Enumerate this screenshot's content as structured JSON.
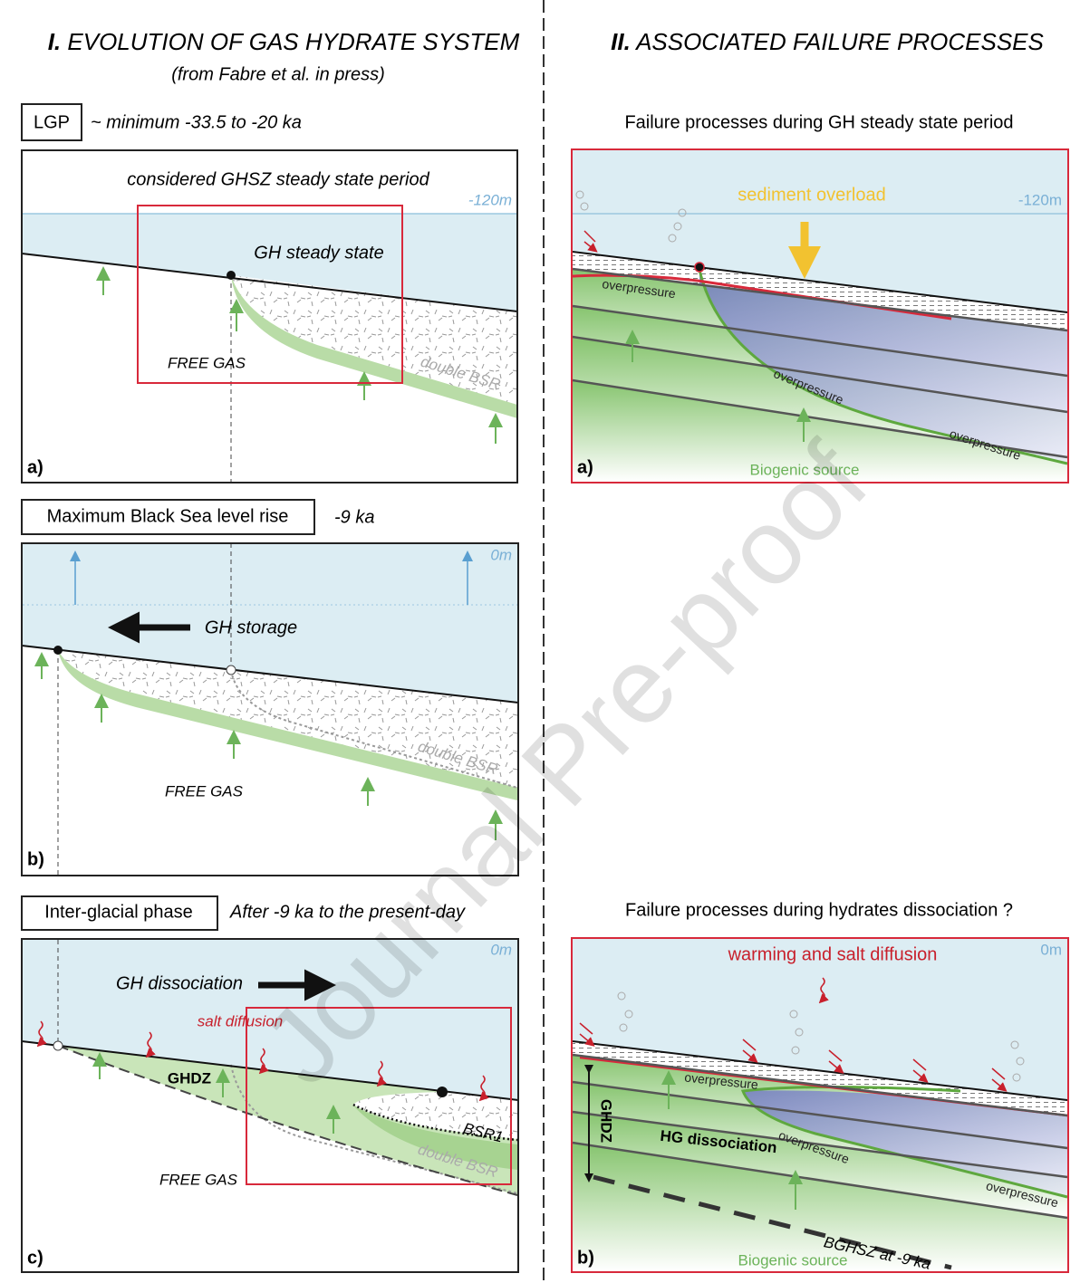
{
  "left": {
    "number": "I.",
    "title": "EVOLUTION OF GAS HYDRATE SYSTEM",
    "subtitle": "(from Fabre et al. in press)",
    "panels": [
      {
        "tag": "LGP",
        "period": "~ minimum -33.5 to -20 ka",
        "caption": "considered GHSZ steady state period",
        "level": "-120m",
        "state": "GH steady state",
        "gas": "FREE GAS",
        "bsr": "double BSR",
        "letter": "a)"
      },
      {
        "tag": "Maximum Black Sea level rise",
        "period": "-9 ka",
        "level": "0m",
        "state": "GH storage",
        "gas": "FREE GAS",
        "bsr": "double BSR",
        "letter": "b)"
      },
      {
        "tag": "Inter-glacial phase",
        "period": "After -9 ka to the present-day",
        "level": "0m",
        "state": "GH dissociation",
        "salt": "salt diffusion",
        "zone": "GHDZ",
        "bsr1": "BSR1",
        "bsr": "double BSR",
        "gas": "FREE GAS",
        "letter": "c)"
      }
    ]
  },
  "right": {
    "number": "II.",
    "title": "ASSOCIATED FAILURE PROCESSES",
    "panels": [
      {
        "heading": "Failure processes during GH steady state period",
        "driver": "sediment overload",
        "level": "-120m",
        "overpressure": [
          "overpressure",
          "overpressure",
          "overpressure"
        ],
        "source": "Biogenic source",
        "letter": "a)"
      },
      {
        "heading": "Failure processes during hydrates dissociation ?",
        "driver": "warming and salt diffusion",
        "level": "0m",
        "zone": "GHDZ",
        "process": "HG dissociation",
        "overpressure": [
          "overpressure",
          "overpressure",
          "overpressure"
        ],
        "boundary": "BGHSZ at -9 ka",
        "source": "Biogenic source",
        "letter": "b)"
      }
    ]
  },
  "watermark": "Journal Pre-proof"
}
